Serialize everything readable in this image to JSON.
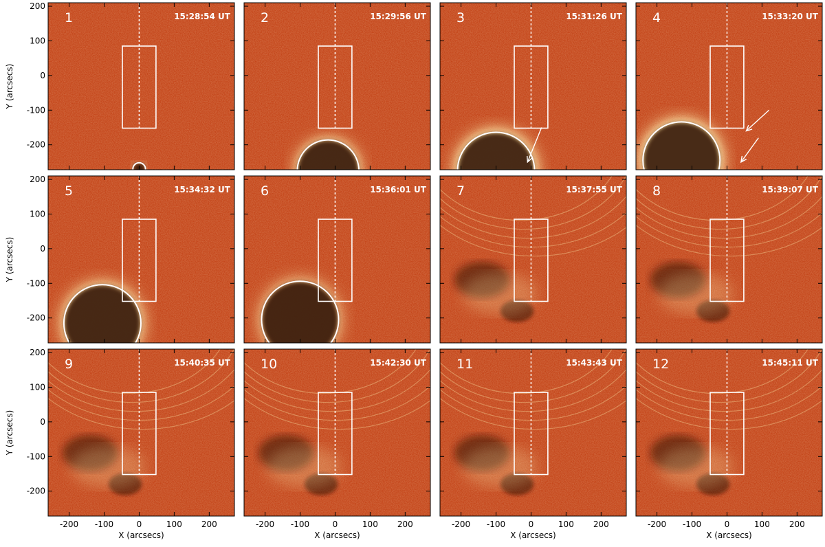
{
  "figure": {
    "x_axis_label": "X (arcsecs)",
    "y_axis_label": "Y (arcsecs)",
    "x_ticks": [
      "-200",
      "-100",
      "0",
      "100",
      "200"
    ],
    "y_ticks": [
      "200",
      "100",
      "0",
      "-100",
      "-200"
    ],
    "box_region_arcsec": {
      "x": [
        -48,
        48
      ],
      "y": [
        -152,
        85
      ]
    },
    "slit_x_arcsec": 0,
    "colors": {
      "background": "#c23f13",
      "bright": "#fff0b0",
      "dark": "#2a0804",
      "overlay": "#ffffff"
    },
    "panels": [
      {
        "number": "1",
        "time": "15:28:54 UT"
      },
      {
        "number": "2",
        "time": "15:29:56 UT"
      },
      {
        "number": "3",
        "time": "15:31:26 UT"
      },
      {
        "number": "4",
        "time": "15:33:20 UT"
      },
      {
        "number": "5",
        "time": "15:34:32 UT"
      },
      {
        "number": "6",
        "time": "15:36:01 UT"
      },
      {
        "number": "7",
        "time": "15:37:55 UT"
      },
      {
        "number": "8",
        "time": "15:39:07 UT"
      },
      {
        "number": "9",
        "time": "15:40:35 UT"
      },
      {
        "number": "10",
        "time": "15:42:30 UT"
      },
      {
        "number": "11",
        "time": "15:43:43 UT"
      },
      {
        "number": "12",
        "time": "15:45:11 UT"
      }
    ]
  }
}
